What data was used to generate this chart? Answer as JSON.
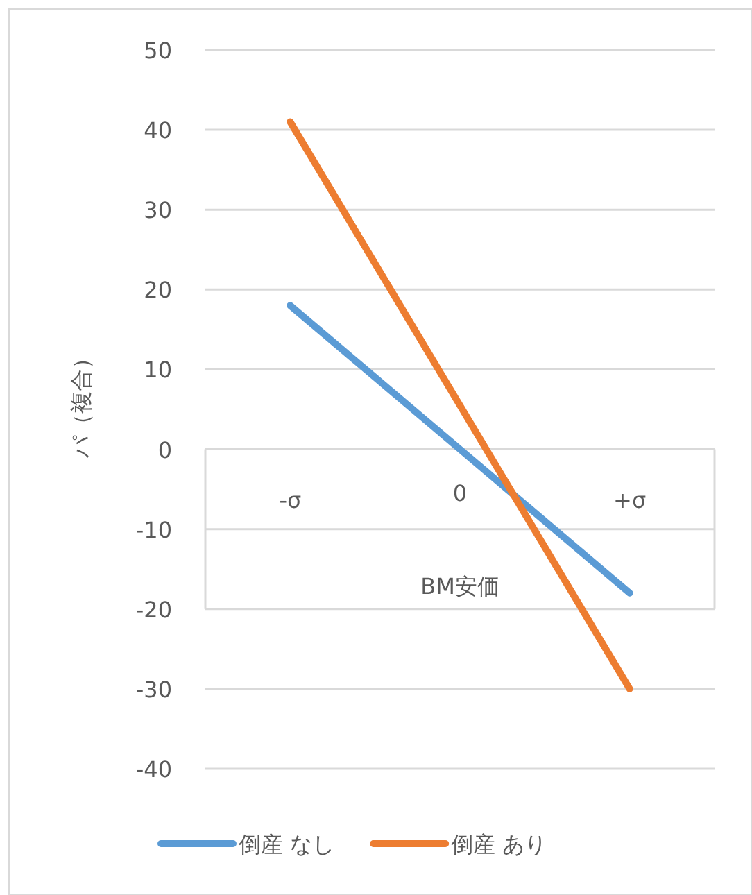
{
  "chart_data": {
    "type": "line",
    "categories": [
      "-σ",
      "0",
      "+σ"
    ],
    "xlabel": "BM安価",
    "ylabel": "パ（複合）",
    "ylim": [
      -40,
      50
    ],
    "yticks": [
      -40,
      -30,
      -20,
      -10,
      0,
      10,
      20,
      30,
      40,
      50
    ],
    "grid": "y",
    "legend": "bottom",
    "series": [
      {
        "name": "倒産 なし",
        "color": "#5b9bd5",
        "values": [
          18,
          0,
          -18
        ]
      },
      {
        "name": "倒産 あり",
        "color": "#ed7d31",
        "values": [
          41,
          5.5,
          -30
        ]
      }
    ]
  }
}
